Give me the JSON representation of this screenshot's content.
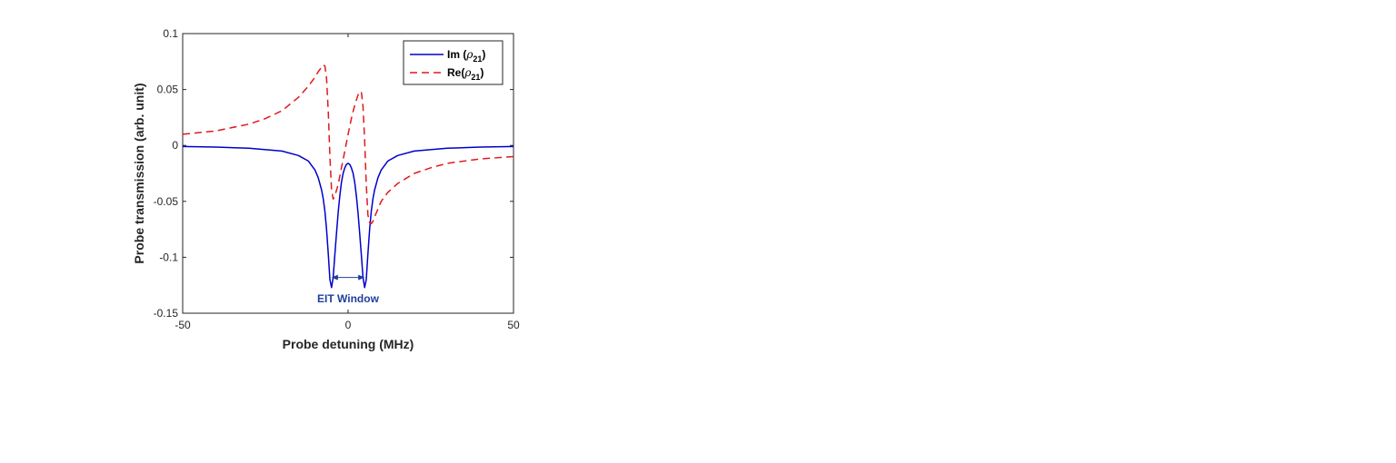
{
  "chart_data": {
    "type": "line",
    "title": "",
    "xlabel": "Probe detuning (MHz)",
    "ylabel": "Probe transmission (arb. unit)",
    "xlim": [
      -50,
      50
    ],
    "ylim": [
      -0.15,
      0.1
    ],
    "xticks": [
      -50,
      0,
      50
    ],
    "xtick_labels": [
      "-50",
      "0",
      "50"
    ],
    "yticks": [
      -0.15,
      -0.1,
      -0.05,
      0,
      0.05,
      0.1
    ],
    "ytick_labels": [
      "-0.15",
      "-0.1",
      "-0.05",
      "0",
      "0.05",
      "0.1"
    ],
    "grid": false,
    "legend_position": "top-right",
    "series": [
      {
        "name": "Im (ρ21)",
        "legend_main": "Im (",
        "legend_symbol": "ρ",
        "legend_sub": "21",
        "legend_close": ")",
        "color": "#0000cc",
        "style": "solid",
        "x": [
          -50,
          -40,
          -30,
          -20,
          -15,
          -12,
          -10,
          -9,
          -8,
          -7.5,
          -7,
          -6.5,
          -6,
          -5.5,
          -5,
          -4.5,
          -4,
          -3.5,
          -3,
          -2.5,
          -2,
          -1.5,
          -1,
          -0.5,
          0,
          0.5,
          1,
          1.5,
          2,
          2.5,
          3,
          3.5,
          4,
          4.5,
          5,
          5.5,
          6,
          6.5,
          7,
          7.5,
          8,
          9,
          10,
          12,
          15,
          20,
          30,
          40,
          50
        ],
        "y": [
          -0.001,
          -0.0015,
          -0.0025,
          -0.005,
          -0.009,
          -0.014,
          -0.022,
          -0.029,
          -0.04,
          -0.048,
          -0.059,
          -0.075,
          -0.097,
          -0.12,
          -0.127,
          -0.118,
          -0.098,
          -0.078,
          -0.06,
          -0.045,
          -0.033,
          -0.025,
          -0.02,
          -0.017,
          -0.016,
          -0.017,
          -0.02,
          -0.025,
          -0.033,
          -0.045,
          -0.06,
          -0.078,
          -0.098,
          -0.118,
          -0.127,
          -0.12,
          -0.097,
          -0.075,
          -0.059,
          -0.048,
          -0.04,
          -0.029,
          -0.022,
          -0.014,
          -0.009,
          -0.005,
          -0.0025,
          -0.0015,
          -0.001
        ]
      },
      {
        "name": "Re(ρ21)",
        "legend_main": "Re(",
        "legend_symbol": "ρ",
        "legend_sub": "21",
        "legend_close": ")",
        "color": "#e0191d",
        "style": "dashed",
        "x": [
          -50,
          -40,
          -30,
          -25,
          -20,
          -15,
          -12,
          -10,
          -9,
          -8,
          -7.5,
          -7,
          -6.5,
          -6,
          -5.5,
          -5,
          -4.5,
          -4,
          -3.5,
          -3,
          -2,
          -1,
          0,
          1,
          2,
          3,
          3.5,
          4,
          4.5,
          5,
          5.5,
          6,
          6.5,
          7,
          7.5,
          8,
          9,
          10,
          12,
          15,
          20,
          25,
          30,
          40,
          50
        ],
        "y": [
          0.01,
          0.013,
          0.019,
          0.024,
          0.031,
          0.043,
          0.053,
          0.061,
          0.066,
          0.07,
          0.072,
          0.071,
          0.06,
          0.03,
          -0.01,
          -0.04,
          -0.048,
          -0.045,
          -0.04,
          -0.035,
          -0.02,
          -0.005,
          0.01,
          0.024,
          0.036,
          0.045,
          0.048,
          0.048,
          0.035,
          0.005,
          -0.035,
          -0.062,
          -0.069,
          -0.07,
          -0.068,
          -0.064,
          -0.057,
          -0.05,
          -0.042,
          -0.034,
          -0.025,
          -0.02,
          -0.016,
          -0.012,
          -0.01
        ]
      }
    ],
    "annotations": [
      {
        "text": "EIT Window",
        "arrow_from_x": -5,
        "arrow_to_x": 5,
        "arrow_y": -0.118,
        "text_x": 0,
        "text_y": -0.137
      }
    ]
  }
}
